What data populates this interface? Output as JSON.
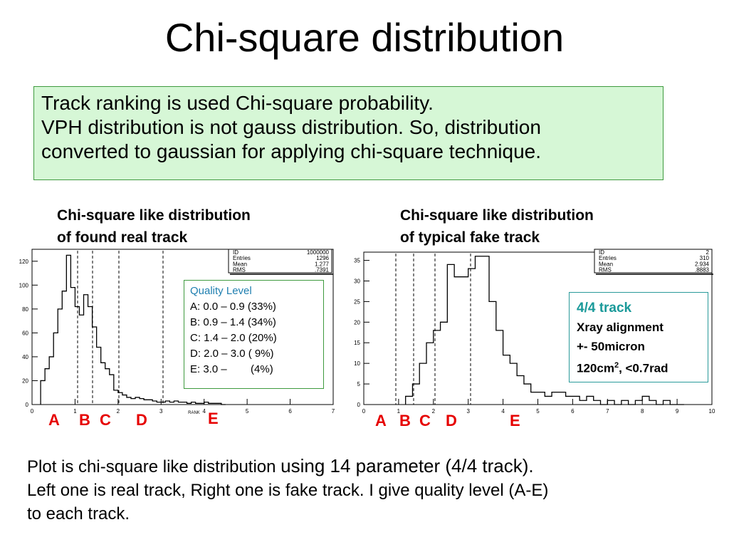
{
  "title": "Chi-square distribution",
  "intro": {
    "lines": [
      "Track ranking is used Chi-square probability.",
      "VPH distribution is not gauss distribution. So, distribution",
      "converted to gaussian for applying chi-square technique."
    ]
  },
  "captions": {
    "left": [
      "Chi-square like distribution",
      "of found real track"
    ],
    "right": [
      "Chi-square like distribution",
      "of typical fake track"
    ]
  },
  "quality_box": {
    "title": "Quality Level",
    "lines": [
      "A: 0.0 – 0.9 (33%)",
      "B: 0.9 – 1.4 (34%)",
      "C: 1.4 – 2.0 (20%)",
      "D: 2.0 – 3.0 ( 9%)",
      "E: 3.0 –        (4%)"
    ]
  },
  "track_box": {
    "title": "4/4 track",
    "line1": "Xray alignment",
    "line2": "+- 50micron",
    "line3_pre": "120cm",
    "line3_sup": "2",
    "line3_post": ", <0.7rad"
  },
  "levels_left": [
    "A",
    "B",
    "C",
    "D",
    "E"
  ],
  "levels_right": [
    "A",
    "B",
    "C",
    "D",
    "E"
  ],
  "bottom": {
    "line1_a": "Plot is chi-square like distribution ",
    "line1_b": "using 14 parameter (4/4 track).",
    "line2": "Left one is real track, Right one is fake track. I give quality level (A-E)",
    "line3": "to each track."
  },
  "chart_data": [
    {
      "type": "bar",
      "xlabel": "RANK",
      "xlim": [
        0,
        7
      ],
      "ylim": [
        0,
        130
      ],
      "x_ticks": [
        "0",
        "1",
        "2",
        "3",
        "4",
        "5",
        "6",
        "7"
      ],
      "y_ticks": [
        "0",
        "20",
        "40",
        "60",
        "80",
        "100",
        "120"
      ],
      "stats": [
        [
          "ID",
          "1000000"
        ],
        [
          "Entries",
          "1296"
        ],
        [
          "Mean",
          "1.277"
        ],
        [
          "RMS",
          ".7391"
        ]
      ],
      "bin_width": 0.1,
      "bin_starts": [
        0.2,
        0.3,
        0.4,
        0.5,
        0.6,
        0.7,
        0.8,
        0.9,
        1.0,
        1.1,
        1.2,
        1.3,
        1.4,
        1.5,
        1.6,
        1.7,
        1.8,
        1.9,
        2.0,
        2.1,
        2.2,
        2.3,
        2.4,
        2.5,
        2.6,
        2.7,
        2.8,
        2.9,
        3.0,
        3.1,
        3.2,
        3.3,
        3.4,
        3.5,
        3.6,
        3.7,
        3.8,
        3.9,
        4.0,
        4.1,
        4.2,
        4.3,
        4.4
      ],
      "values": [
        20,
        30,
        40,
        60,
        80,
        95,
        125,
        98,
        82,
        75,
        92,
        82,
        65,
        48,
        35,
        30,
        25,
        12,
        10,
        8,
        6,
        5,
        6,
        5,
        4,
        4,
        3,
        2,
        2,
        3,
        2,
        3,
        2,
        2,
        1,
        2,
        1,
        1,
        2,
        1,
        1,
        1,
        0
      ],
      "cuts": [
        0.9,
        1.4,
        2.0,
        3.0
      ]
    },
    {
      "type": "bar",
      "xlim": [
        0,
        10
      ],
      "ylim": [
        0,
        37
      ],
      "x_ticks": [
        "0",
        "1",
        "2",
        "3",
        "4",
        "5",
        "6",
        "7",
        "8",
        "9",
        "10"
      ],
      "y_ticks": [
        "0",
        "5",
        "10",
        "15",
        "20",
        "25",
        "30",
        "35"
      ],
      "stats": [
        [
          "ID",
          "2"
        ],
        [
          "Entries",
          "310"
        ],
        [
          "Mean",
          "2.934"
        ],
        [
          "RMS",
          ".8883"
        ]
      ],
      "bin_width": 0.2,
      "bin_starts": [
        1.2,
        1.4,
        1.6,
        1.8,
        2.0,
        2.2,
        2.4,
        2.6,
        2.8,
        3.0,
        3.2,
        3.4,
        3.6,
        3.8,
        4.0,
        4.2,
        4.4,
        4.6,
        4.8,
        5.0,
        5.2,
        5.4,
        5.6,
        5.8,
        6.0,
        6.2,
        6.4,
        6.6,
        6.8,
        7.0,
        7.2,
        7.4,
        7.6,
        7.8,
        8.0,
        8.2,
        8.4,
        8.6,
        8.8,
        9.0
      ],
      "values": [
        2,
        5,
        10,
        15,
        18,
        20,
        34,
        31,
        31,
        33,
        36,
        36,
        25,
        18,
        12,
        10,
        7,
        5,
        3,
        3,
        2,
        3,
        3,
        2,
        2,
        1,
        2,
        1,
        0,
        1,
        0,
        1,
        0,
        1,
        2,
        1,
        0,
        1,
        0,
        0
      ],
      "cuts": [
        0.9,
        1.4,
        2.0,
        3.0
      ]
    }
  ]
}
